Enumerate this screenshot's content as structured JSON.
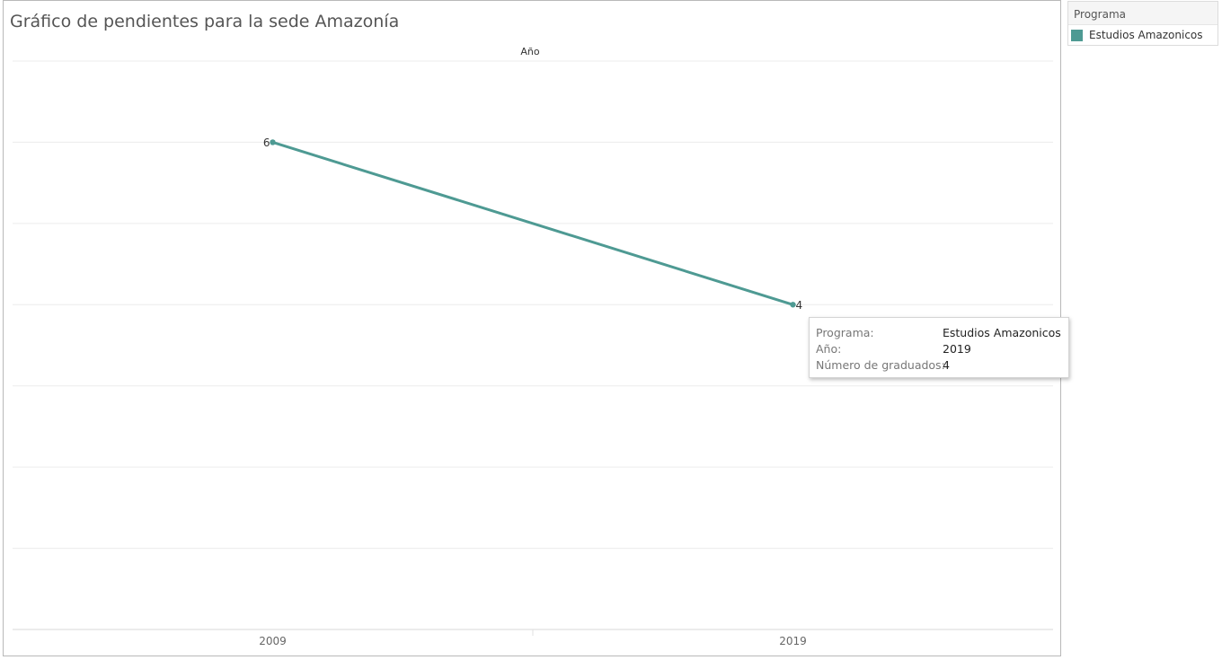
{
  "title": "Gráfico de pendientes para la sede Amazonía",
  "column_header": "Año",
  "legend": {
    "title": "Programa",
    "items": [
      {
        "label": "Estudios Amazonicos",
        "color": "#4e9a93"
      }
    ]
  },
  "tooltip": {
    "rows": [
      {
        "key": "Programa:",
        "value": "Estudios Amazonicos"
      },
      {
        "key": "Año:",
        "value": "2019"
      },
      {
        "key": "Número de graduados:",
        "value": "4"
      }
    ]
  },
  "chart_data": {
    "type": "line",
    "categories": [
      "2009",
      "2019"
    ],
    "series": [
      {
        "name": "Estudios Amazonicos",
        "values": [
          6,
          4
        ],
        "color": "#4e9a93"
      }
    ],
    "ylim": [
      0,
      7
    ],
    "grid": true,
    "data_labels": [
      "6",
      "4"
    ],
    "legend_position": "top-right"
  }
}
